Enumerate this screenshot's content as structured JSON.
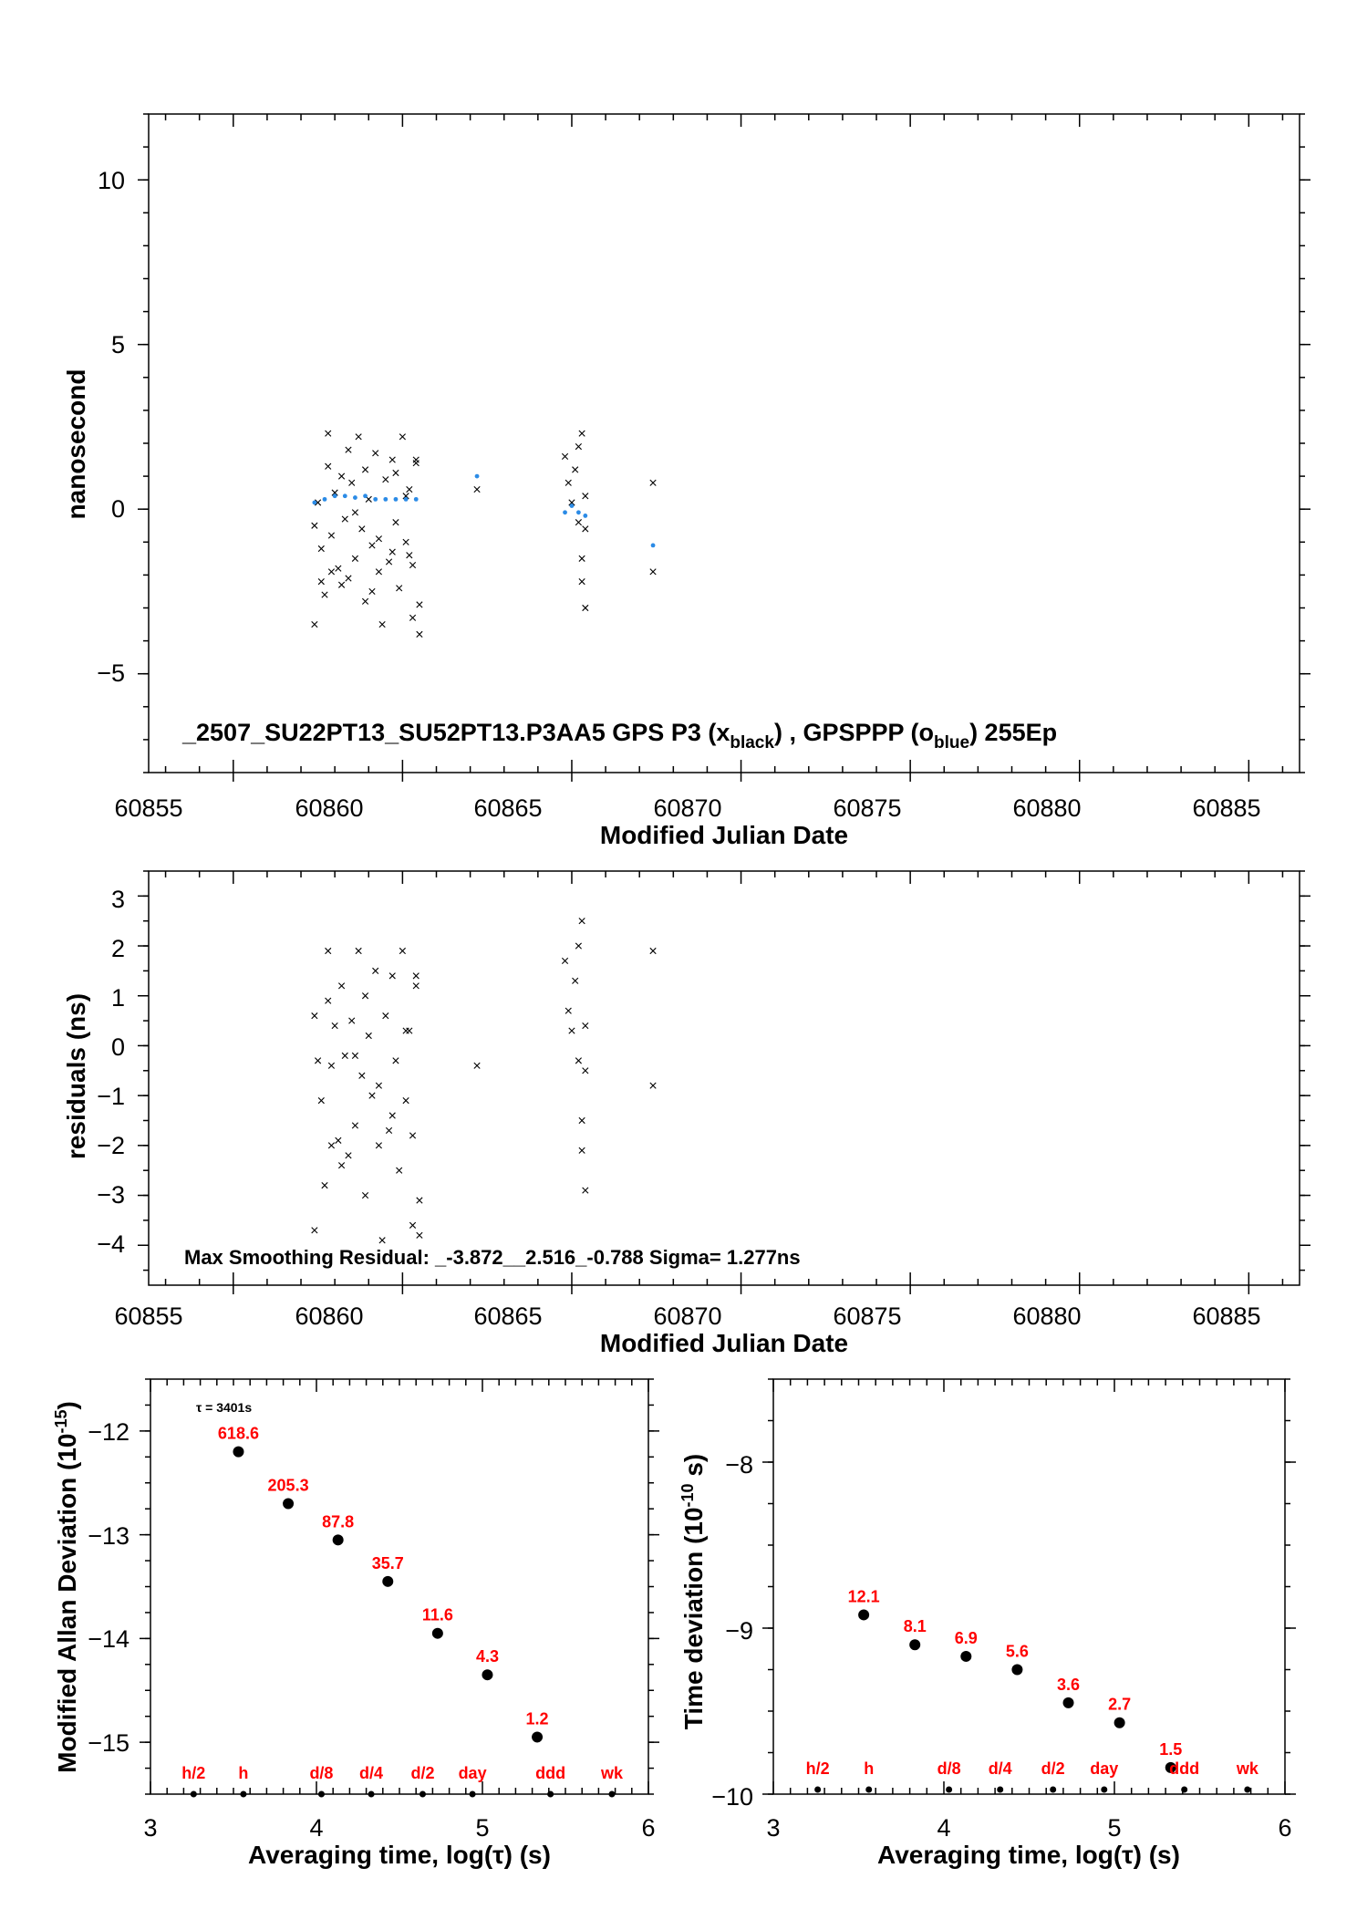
{
  "colors": {
    "black_marker": "#000000",
    "blue_marker": "#2b8be6",
    "label_red": "#ff0000"
  },
  "panel1": {
    "ylabel": "nanosecond",
    "xlabel": "Modified Julian Date",
    "info_main": "_2507_SU22PT13_SU52PT13.P3AA5     GPS P3 (x",
    "info_sub1": "black",
    "info_mid": ") ,  GPSPPP (o",
    "info_sub2": "blue",
    "info_end": ")  255Ep",
    "xticks": [
      "60855",
      "60860",
      "60865",
      "60870",
      "60875",
      "60880",
      "60885"
    ],
    "yticks": [
      "10",
      "5",
      "0",
      "−5"
    ]
  },
  "panel2": {
    "ylabel": "residuals (ns)",
    "xlabel": "Modified Julian Date",
    "info": "Max Smoothing Residual: _-3.872__2.516_-0.788  Sigma= 1.277ns",
    "xticks": [
      "60855",
      "60860",
      "60865",
      "60870",
      "60875",
      "60880",
      "60885"
    ],
    "yticks": [
      "3",
      "2",
      "1",
      "0",
      "−1",
      "−2",
      "−3",
      "−4"
    ]
  },
  "panel3": {
    "ylabel_main": "Modified Allan Deviation (10",
    "ylabel_sup": "-15",
    "ylabel_end": ")",
    "xlabel": "Averaging time, log(τ) (s)",
    "tau_note": "τ = 3401s",
    "xticks": [
      "3",
      "4",
      "5",
      "6"
    ],
    "yticks": [
      "−12",
      "−13",
      "−14",
      "−15"
    ]
  },
  "panel4": {
    "ylabel_main": "Time deviation (10",
    "ylabel_sup": "-10",
    "ylabel_end": " s)",
    "xlabel": "Averaging time, log(τ) (s)",
    "xticks": [
      "3",
      "4",
      "5",
      "6"
    ],
    "yticks": [
      "−8",
      "−9",
      "−10"
    ]
  },
  "chart_data": [
    {
      "type": "scatter",
      "xlabel": "Modified Julian Date",
      "ylabel": "nanosecond",
      "xlim": [
        60852.5,
        60886.5
      ],
      "ylim": [
        -8,
        12
      ],
      "series": [
        {
          "name": "GPS P3 (x black)",
          "marker": "x",
          "color": "#000000",
          "points": [
            [
              60857.4,
              -0.5
            ],
            [
              60857.4,
              -3.5
            ],
            [
              60857.5,
              0.2
            ],
            [
              60857.6,
              -1.2
            ],
            [
              60857.7,
              -2.6
            ],
            [
              60857.8,
              2.3
            ],
            [
              60857.8,
              1.3
            ],
            [
              60857.9,
              -0.8
            ],
            [
              60858.0,
              0.5
            ],
            [
              60858.1,
              -1.8
            ],
            [
              60858.2,
              1.0
            ],
            [
              60858.3,
              -0.3
            ],
            [
              60858.4,
              -2.1
            ],
            [
              60858.5,
              0.8
            ],
            [
              60858.6,
              -1.5
            ],
            [
              60858.7,
              2.2
            ],
            [
              60858.8,
              -0.6
            ],
            [
              60858.9,
              -2.8
            ],
            [
              60859.0,
              0.3
            ],
            [
              60859.1,
              -1.1
            ],
            [
              60859.2,
              1.7
            ],
            [
              60859.3,
              -0.9
            ],
            [
              60859.4,
              -3.5
            ],
            [
              60859.5,
              0.9
            ],
            [
              60859.6,
              -1.6
            ],
            [
              60859.7,
              1.5
            ],
            [
              60859.8,
              -0.4
            ],
            [
              60859.9,
              -2.4
            ],
            [
              60860.0,
              2.2
            ],
            [
              60860.1,
              -1.0
            ],
            [
              60860.2,
              0.6
            ],
            [
              60860.3,
              -3.3
            ],
            [
              60860.4,
              1.4
            ],
            [
              60860.5,
              -2.9
            ],
            [
              60860.5,
              -3.8
            ],
            [
              60860.4,
              1.5
            ],
            [
              60860.3,
              -1.7
            ],
            [
              60857.9,
              -1.9
            ],
            [
              60858.2,
              -2.3
            ],
            [
              60858.6,
              -0.1
            ],
            [
              60858.9,
              1.2
            ],
            [
              60859.3,
              -1.9
            ],
            [
              60859.7,
              -1.3
            ],
            [
              60860.1,
              0.4
            ],
            [
              60857.6,
              -2.2
            ],
            [
              60858.4,
              1.8
            ],
            [
              60859.1,
              -2.5
            ],
            [
              60859.8,
              1.1
            ],
            [
              60860.2,
              -1.4
            ],
            [
              60862.2,
              0.6
            ],
            [
              60864.8,
              1.6
            ],
            [
              60864.9,
              0.8
            ],
            [
              60865.0,
              0.2
            ],
            [
              60865.1,
              1.2
            ],
            [
              60865.2,
              -0.4
            ],
            [
              60865.3,
              2.3
            ],
            [
              60865.3,
              -2.2
            ],
            [
              60865.4,
              -3.0
            ],
            [
              60865.4,
              -0.6
            ],
            [
              60865.2,
              1.9
            ],
            [
              60865.3,
              -1.5
            ],
            [
              60865.4,
              0.4
            ],
            [
              60867.4,
              0.8
            ],
            [
              60867.4,
              -1.9
            ]
          ]
        },
        {
          "name": "GPSPPP (o blue)",
          "marker": "o",
          "color": "#2b8be6",
          "points": [
            [
              60857.4,
              0.2
            ],
            [
              60857.7,
              0.3
            ],
            [
              60858.0,
              0.4
            ],
            [
              60858.3,
              0.4
            ],
            [
              60858.6,
              0.35
            ],
            [
              60858.9,
              0.4
            ],
            [
              60859.2,
              0.3
            ],
            [
              60859.5,
              0.3
            ],
            [
              60859.8,
              0.3
            ],
            [
              60860.1,
              0.3
            ],
            [
              60860.4,
              0.3
            ],
            [
              60862.2,
              1.0
            ],
            [
              60864.8,
              -0.1
            ],
            [
              60865.0,
              0.1
            ],
            [
              60865.2,
              -0.1
            ],
            [
              60865.4,
              -0.2
            ],
            [
              60867.4,
              -1.1
            ]
          ]
        }
      ]
    },
    {
      "type": "scatter",
      "xlabel": "Modified Julian Date",
      "ylabel": "residuals (ns)",
      "xlim": [
        60852.5,
        60886.5
      ],
      "ylim": [
        -4.8,
        3.5
      ],
      "series": [
        {
          "name": "residuals",
          "marker": "x",
          "color": "#000000",
          "points": [
            [
              60857.4,
              0.6
            ],
            [
              60857.4,
              -3.7
            ],
            [
              60857.5,
              -0.3
            ],
            [
              60857.6,
              -1.1
            ],
            [
              60857.7,
              -2.8
            ],
            [
              60857.8,
              1.9
            ],
            [
              60857.8,
              0.9
            ],
            [
              60857.9,
              -0.4
            ],
            [
              60858.0,
              0.4
            ],
            [
              60858.1,
              -1.9
            ],
            [
              60858.2,
              1.2
            ],
            [
              60858.3,
              -0.2
            ],
            [
              60858.4,
              -2.2
            ],
            [
              60858.5,
              0.5
            ],
            [
              60858.6,
              -1.6
            ],
            [
              60858.7,
              1.9
            ],
            [
              60858.8,
              -0.6
            ],
            [
              60858.9,
              -3.0
            ],
            [
              60859.0,
              0.2
            ],
            [
              60859.1,
              -1.0
            ],
            [
              60859.2,
              1.5
            ],
            [
              60859.3,
              -0.8
            ],
            [
              60859.4,
              -3.9
            ],
            [
              60859.5,
              0.6
            ],
            [
              60859.6,
              -1.7
            ],
            [
              60859.7,
              1.4
            ],
            [
              60859.8,
              -0.3
            ],
            [
              60859.9,
              -2.5
            ],
            [
              60860.0,
              1.9
            ],
            [
              60860.1,
              -1.1
            ],
            [
              60860.2,
              0.3
            ],
            [
              60860.3,
              -3.6
            ],
            [
              60860.4,
              1.2
            ],
            [
              60860.5,
              -3.1
            ],
            [
              60860.5,
              -3.8
            ],
            [
              60860.4,
              1.4
            ],
            [
              60860.3,
              -1.8
            ],
            [
              60857.9,
              -2.0
            ],
            [
              60858.2,
              -2.4
            ],
            [
              60858.6,
              -0.2
            ],
            [
              60858.9,
              1.0
            ],
            [
              60859.3,
              -2.0
            ],
            [
              60859.7,
              -1.4
            ],
            [
              60860.1,
              0.3
            ],
            [
              60862.2,
              -0.4
            ],
            [
              60864.8,
              1.7
            ],
            [
              60864.9,
              0.7
            ],
            [
              60865.0,
              0.3
            ],
            [
              60865.1,
              1.3
            ],
            [
              60865.2,
              -0.3
            ],
            [
              60865.3,
              2.5
            ],
            [
              60865.3,
              -2.1
            ],
            [
              60865.4,
              -2.9
            ],
            [
              60865.4,
              -0.5
            ],
            [
              60865.2,
              2.0
            ],
            [
              60865.3,
              -1.5
            ],
            [
              60865.4,
              0.4
            ],
            [
              60867.4,
              1.9
            ],
            [
              60867.4,
              -0.8
            ]
          ]
        }
      ]
    },
    {
      "type": "scatter",
      "xlabel": "Averaging time, log(τ) (s)",
      "ylabel": "Modified Allan Deviation (10^-15)",
      "xlim": [
        3,
        6
      ],
      "ylim": [
        -15.5,
        -11.5
      ],
      "points": [
        {
          "x": 3.53,
          "y": -12.2,
          "label": "618.6"
        },
        {
          "x": 3.83,
          "y": -12.7,
          "label": "205.3"
        },
        {
          "x": 4.13,
          "y": -13.05,
          "label": "87.8"
        },
        {
          "x": 4.43,
          "y": -13.45,
          "label": "35.7"
        },
        {
          "x": 4.73,
          "y": -13.95,
          "label": "11.6"
        },
        {
          "x": 5.03,
          "y": -14.35,
          "label": "4.3"
        },
        {
          "x": 5.33,
          "y": -14.95,
          "label": "1.2"
        }
      ],
      "markers": [
        {
          "x": 3.26,
          "label": "h/2"
        },
        {
          "x": 3.56,
          "label": "h"
        },
        {
          "x": 4.03,
          "label": "d/8"
        },
        {
          "x": 4.33,
          "label": "d/4"
        },
        {
          "x": 4.64,
          "label": "d/2"
        },
        {
          "x": 4.94,
          "label": "day"
        },
        {
          "x": 5.41,
          "label": "ddd"
        },
        {
          "x": 5.78,
          "label": "wk"
        }
      ]
    },
    {
      "type": "scatter",
      "xlabel": "Averaging time, log(τ) (s)",
      "ylabel": "Time deviation (10^-10 s)",
      "xlim": [
        3,
        6
      ],
      "ylim": [
        -10,
        -7.5
      ],
      "points": [
        {
          "x": 3.53,
          "y": -8.92,
          "label": "12.1"
        },
        {
          "x": 3.83,
          "y": -9.1,
          "label": "8.1"
        },
        {
          "x": 4.13,
          "y": -9.17,
          "label": "6.9"
        },
        {
          "x": 4.43,
          "y": -9.25,
          "label": "5.6"
        },
        {
          "x": 4.73,
          "y": -9.45,
          "label": "3.6"
        },
        {
          "x": 5.03,
          "y": -9.57,
          "label": "2.7"
        },
        {
          "x": 5.33,
          "y": -9.84,
          "label": "1.5"
        }
      ],
      "markers": [
        {
          "x": 3.26,
          "label": "h/2"
        },
        {
          "x": 3.56,
          "label": "h"
        },
        {
          "x": 4.03,
          "label": "d/8"
        },
        {
          "x": 4.33,
          "label": "d/4"
        },
        {
          "x": 4.64,
          "label": "d/2"
        },
        {
          "x": 4.94,
          "label": "day"
        },
        {
          "x": 5.41,
          "label": "ddd"
        },
        {
          "x": 5.78,
          "label": "wk"
        }
      ]
    }
  ]
}
